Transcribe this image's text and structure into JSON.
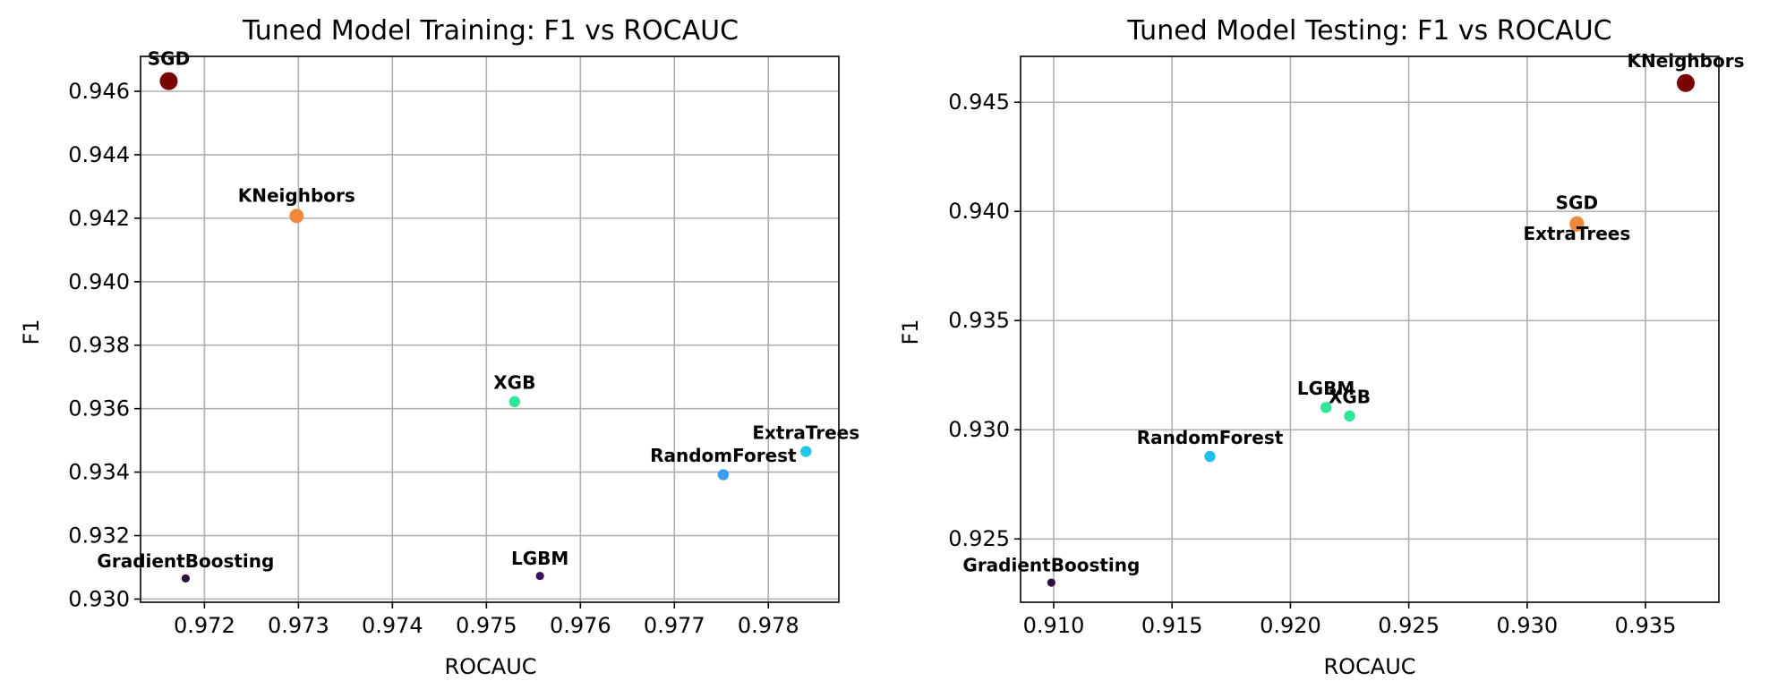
{
  "chart_data": [
    {
      "type": "scatter",
      "title": "Tuned Model Training: F1 vs ROCAUC",
      "xlabel": "ROCAUC",
      "ylabel": "F1",
      "xlim": [
        0.97132,
        0.97875
      ],
      "ylim": [
        0.9299,
        0.9471
      ],
      "xticks": [
        "0.972",
        "0.973",
        "0.974",
        "0.975",
        "0.976",
        "0.977",
        "0.978"
      ],
      "yticks": [
        "0.930",
        "0.932",
        "0.934",
        "0.936",
        "0.938",
        "0.940",
        "0.942",
        "0.944",
        "0.946"
      ],
      "grid": true,
      "points": [
        {
          "label": "SGD",
          "x": 0.97162,
          "y": 0.94632,
          "color": "#7a0403",
          "size": "large"
        },
        {
          "label": "KNeighbors",
          "x": 0.97298,
          "y": 0.94207,
          "color": "#f0883a",
          "size": "medium"
        },
        {
          "label": "XGB",
          "x": 0.9753,
          "y": 0.93622,
          "color": "#2de697",
          "size": "small"
        },
        {
          "label": "ExtraTrees",
          "x": 0.9784,
          "y": 0.93465,
          "color": "#1fc6e8",
          "size": "small"
        },
        {
          "label": "RandomForest",
          "x": 0.97752,
          "y": 0.93392,
          "color": "#3a9ef0",
          "size": "small"
        },
        {
          "label": "GradientBoosting",
          "x": 0.9718,
          "y": 0.93065,
          "color": "#30123b",
          "size": "tiny"
        },
        {
          "label": "LGBM",
          "x": 0.97557,
          "y": 0.93073,
          "color": "#3b1458",
          "size": "tiny"
        }
      ]
    },
    {
      "type": "scatter",
      "title": "Tuned Model Testing: F1 vs ROCAUC",
      "xlabel": "ROCAUC",
      "ylabel": "F1",
      "xlim": [
        0.9086,
        0.9381
      ],
      "ylim": [
        0.9221,
        0.9471
      ],
      "xticks": [
        "0.910",
        "0.915",
        "0.920",
        "0.925",
        "0.930",
        "0.935"
      ],
      "yticks": [
        "0.925",
        "0.930",
        "0.935",
        "0.940",
        "0.945"
      ],
      "grid": true,
      "points": [
        {
          "label": "KNeighbors",
          "x": 0.9367,
          "y": 0.94588,
          "color": "#7a0403",
          "size": "large"
        },
        {
          "label": "SGD",
          "x": 0.9321,
          "y": 0.93945,
          "color": "#f0883a",
          "size": "medium"
        },
        {
          "label": "ExtraTrees",
          "x": 0.9321,
          "y": 0.9394,
          "color": "#f0883a",
          "size": "medium",
          "label_below": true
        },
        {
          "label": "LGBM",
          "x": 0.9215,
          "y": 0.93102,
          "color": "#2de697",
          "size": "small"
        },
        {
          "label": "XGB",
          "x": 0.9225,
          "y": 0.93063,
          "color": "#2de697",
          "size": "small"
        },
        {
          "label": "RandomForest",
          "x": 0.9166,
          "y": 0.92878,
          "color": "#1fbfe9",
          "size": "small"
        },
        {
          "label": "GradientBoosting",
          "x": 0.9099,
          "y": 0.923,
          "color": "#30123b",
          "size": "tiny"
        }
      ]
    }
  ]
}
